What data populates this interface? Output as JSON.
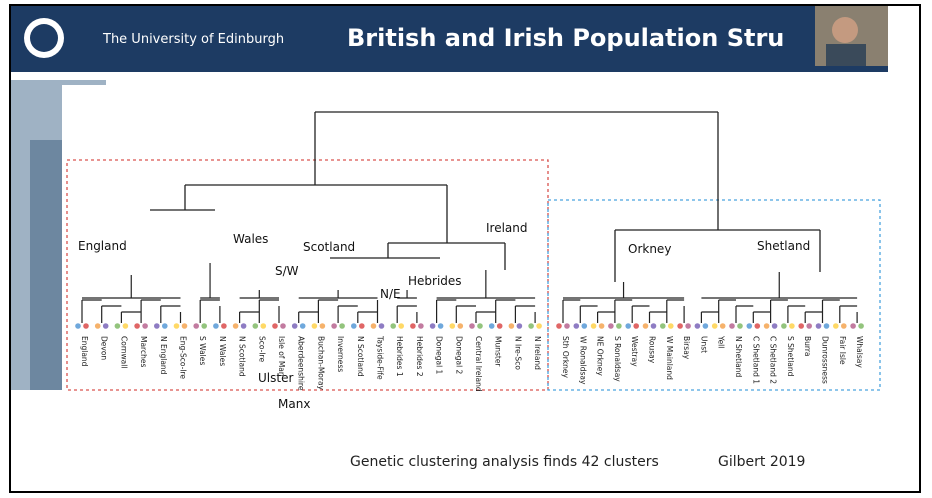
{
  "header": {
    "university": "The University of Edinburgh",
    "title": "British and Irish Population Stru"
  },
  "diagram": {
    "groups": [
      "England",
      "Wales",
      "Scotland",
      "S/W",
      "N/E",
      "Hebrides",
      "Ireland",
      "Ulster",
      "Manx",
      "Orkney",
      "Shetland"
    ],
    "leaves": [
      "England",
      "Devon",
      "Cornwall",
      "Marches",
      "N England",
      "Eng-Sco-Ire",
      "S Wales",
      "N Wales",
      "N Scotland",
      "Sco-Ire",
      "Isle of Man",
      "Aberdeenshire",
      "Buchan-Moray",
      "Inverness",
      "N Scotland",
      "Tayside-Fife",
      "Hebrides 1",
      "Hebrides 2",
      "Donegal 1",
      "Donegal 2",
      "Central Ireland",
      "Munster",
      "N Ire-Sco",
      "N Ireland",
      "Sth Orkney",
      "W Ronaldsay",
      "NE Orkney",
      "S Ronaldsay",
      "Westray",
      "Rousay",
      "W Mainland",
      "Birsay",
      "Unst",
      "Yell",
      "N Shetland",
      "C Shetland 1",
      "C Shetland 2",
      "S Shetland",
      "Burra",
      "Dunrossness",
      "Fair Isle",
      "Whalsay"
    ]
  },
  "footer": {
    "caption": "Genetic clustering analysis finds 42 clusters",
    "citation": "Gilbert 2019"
  }
}
